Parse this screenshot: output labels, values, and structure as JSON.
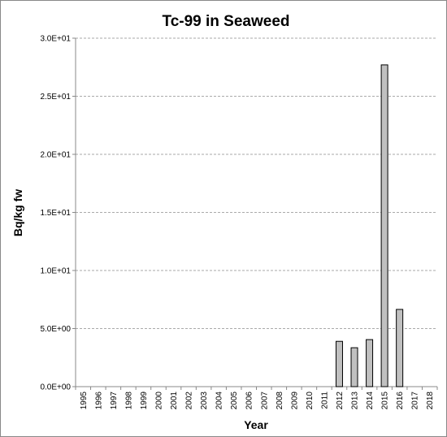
{
  "chart_data": {
    "type": "bar",
    "title": "Tc-99 in Seaweed",
    "x_label": "Year",
    "y_label": "Bq/kg fw",
    "categories": [
      "1995",
      "1996",
      "1997",
      "1998",
      "1999",
      "2000",
      "2001",
      "2002",
      "2003",
      "2004",
      "2005",
      "2006",
      "2007",
      "2008",
      "2009",
      "2010",
      "2011",
      "2012",
      "2013",
      "2014",
      "2015",
      "2016",
      "2017",
      "2018"
    ],
    "values": [
      null,
      null,
      null,
      null,
      null,
      null,
      null,
      null,
      null,
      null,
      null,
      null,
      null,
      null,
      null,
      null,
      null,
      3.9,
      3.35,
      4.05,
      27.7,
      6.65,
      null,
      null
    ],
    "color": "#c0c0c0",
    "ylim": [
      0,
      30
    ],
    "yticks": [
      {
        "value": 0,
        "label": "0.0E+00"
      },
      {
        "value": 5,
        "label": "5.0E+00"
      },
      {
        "value": 10,
        "label": "1.0E+01"
      },
      {
        "value": 15,
        "label": "1.5E+01"
      },
      {
        "value": 20,
        "label": "2.0E+01"
      },
      {
        "value": 25,
        "label": "2.5E+01"
      },
      {
        "value": 30,
        "label": "3.0E+01"
      }
    ],
    "grid": true
  }
}
